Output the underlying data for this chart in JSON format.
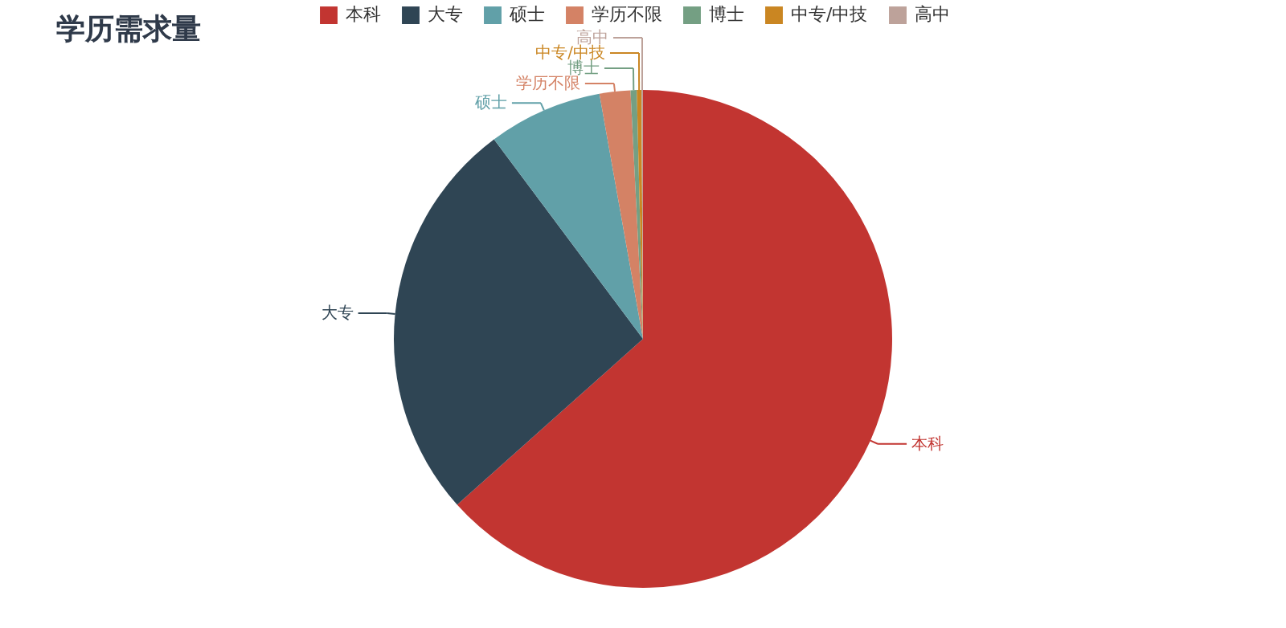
{
  "chart_data": {
    "type": "pie",
    "title": "学历需求量",
    "categories": [
      "本科",
      "大专",
      "硕士",
      "学历不限",
      "博士",
      "中专/中技",
      "高中"
    ],
    "values": [
      63.4,
      26.4,
      7.4,
      2.0,
      0.4,
      0.3,
      0.1
    ],
    "colors": [
      "#c23531",
      "#2f4554",
      "#61a0a8",
      "#d48265",
      "#749f83",
      "#ca8622",
      "#bda29a"
    ],
    "legend": "top"
  }
}
